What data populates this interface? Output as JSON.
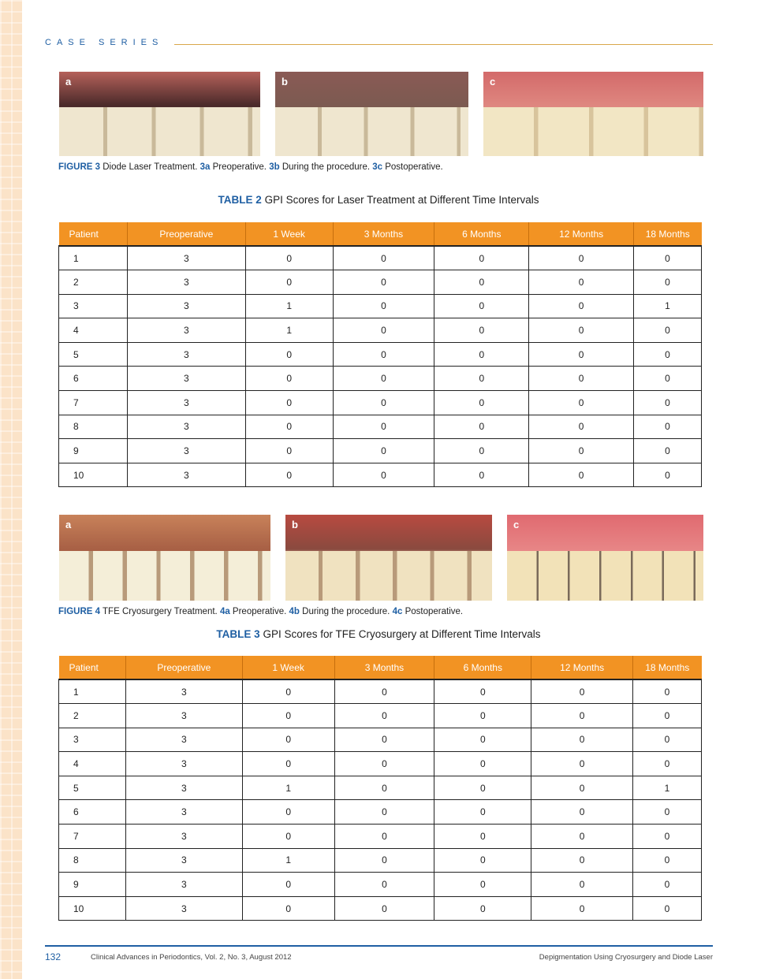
{
  "header": {
    "running_head": "CASE SERIES"
  },
  "figure3": {
    "panels": [
      "a",
      "b",
      "c"
    ],
    "caption": {
      "label": "FIGURE 3",
      "text": " Diode Laser Treatment. ",
      "p1": "3a",
      "t1": " Preoperative. ",
      "p2": "3b",
      "t2": " During the procedure. ",
      "p3": "3c",
      "t3": " Postoperative."
    }
  },
  "table2": {
    "label": "TABLE 2",
    "title": " GPI Scores for Laser Treatment at Different Time Intervals",
    "columns": [
      "Patient",
      "Preoperative",
      "1 Week",
      "3 Months",
      "6 Months",
      "12 Months",
      "18 Months"
    ],
    "rows": [
      [
        "1",
        "3",
        "0",
        "0",
        "0",
        "0",
        "0"
      ],
      [
        "2",
        "3",
        "0",
        "0",
        "0",
        "0",
        "0"
      ],
      [
        "3",
        "3",
        "1",
        "0",
        "0",
        "0",
        "1"
      ],
      [
        "4",
        "3",
        "1",
        "0",
        "0",
        "0",
        "0"
      ],
      [
        "5",
        "3",
        "0",
        "0",
        "0",
        "0",
        "0"
      ],
      [
        "6",
        "3",
        "0",
        "0",
        "0",
        "0",
        "0"
      ],
      [
        "7",
        "3",
        "0",
        "0",
        "0",
        "0",
        "0"
      ],
      [
        "8",
        "3",
        "0",
        "0",
        "0",
        "0",
        "0"
      ],
      [
        "9",
        "3",
        "0",
        "0",
        "0",
        "0",
        "0"
      ],
      [
        "10",
        "3",
        "0",
        "0",
        "0",
        "0",
        "0"
      ]
    ]
  },
  "figure4": {
    "panels": [
      "a",
      "b",
      "c"
    ],
    "caption": {
      "label": "FIGURE 4",
      "text": " TFE Cryosurgery Treatment. ",
      "p1": "4a",
      "t1": " Preoperative. ",
      "p2": "4b",
      "t2": " During the procedure. ",
      "p3": "4c",
      "t3": " Postoperative."
    }
  },
  "table3": {
    "label": "TABLE 3",
    "title": " GPI Scores for TFE Cryosurgery at Different Time Intervals",
    "columns": [
      "Patient",
      "Preoperative",
      "1 Week",
      "3 Months",
      "6 Months",
      "12 Months",
      "18 Months"
    ],
    "rows": [
      [
        "1",
        "3",
        "0",
        "0",
        "0",
        "0",
        "0"
      ],
      [
        "2",
        "3",
        "0",
        "0",
        "0",
        "0",
        "0"
      ],
      [
        "3",
        "3",
        "0",
        "0",
        "0",
        "0",
        "0"
      ],
      [
        "4",
        "3",
        "0",
        "0",
        "0",
        "0",
        "0"
      ],
      [
        "5",
        "3",
        "1",
        "0",
        "0",
        "0",
        "1"
      ],
      [
        "6",
        "3",
        "0",
        "0",
        "0",
        "0",
        "0"
      ],
      [
        "7",
        "3",
        "0",
        "0",
        "0",
        "0",
        "0"
      ],
      [
        "8",
        "3",
        "1",
        "0",
        "0",
        "0",
        "0"
      ],
      [
        "9",
        "3",
        "0",
        "0",
        "0",
        "0",
        "0"
      ],
      [
        "10",
        "3",
        "0",
        "0",
        "0",
        "0",
        "0"
      ]
    ]
  },
  "footer": {
    "page_number": "132",
    "journal": "Clinical Advances in Periodontics, Vol. 2, No. 3, August 2012",
    "article": "Depigmentation Using Cryosurgery and Diode Laser"
  },
  "colors": {
    "accent_blue": "#1f5fa3",
    "table_header_orange": "#f29323",
    "rule_gold": "#d9a64a"
  }
}
